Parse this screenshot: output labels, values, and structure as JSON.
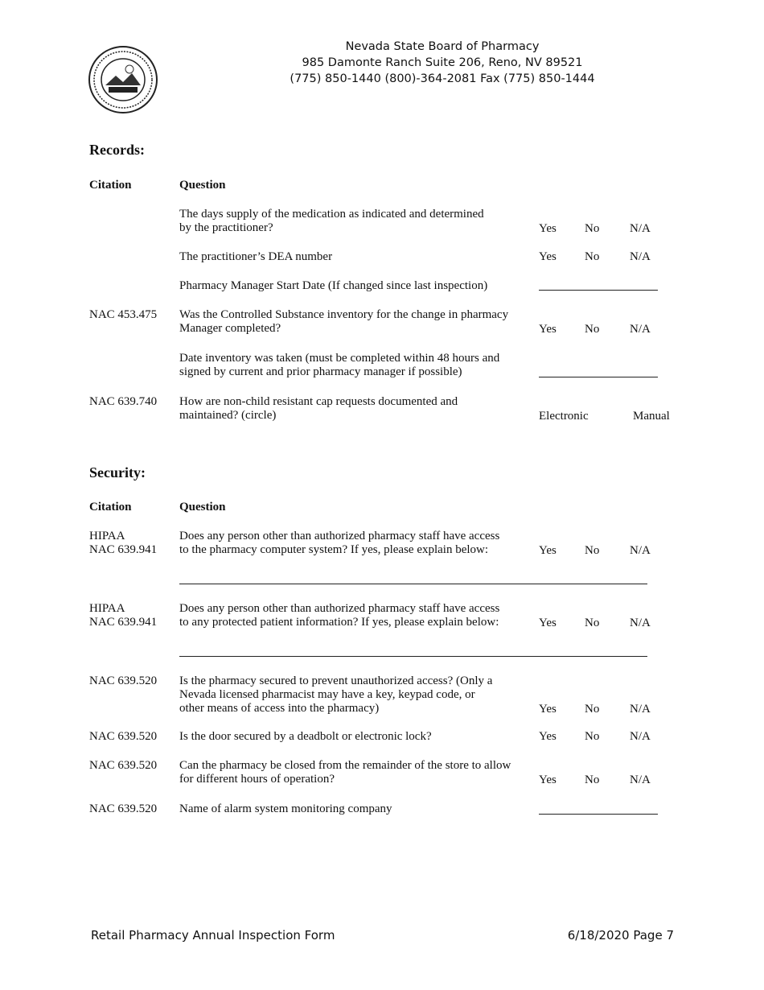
{
  "header": {
    "org": "Nevada State Board of Pharmacy",
    "address": "985 Damonte Ranch Suite 206, Reno, NV 89521",
    "phones": "(775) 850-1440 (800)-364-2081 Fax (775) 850-1444",
    "seal_text": "The Great Seal of the State of Nevada"
  },
  "columns": {
    "citation": "Citation",
    "question": "Question"
  },
  "answers": {
    "yes": "Yes",
    "no": "No",
    "na": "N/A",
    "electronic": "Electronic",
    "manual": "Manual"
  },
  "records": {
    "title": "Records:",
    "rows": [
      {
        "citation": "",
        "q": [
          "The days supply of the medication as indicated and determined",
          "by the practitioner?"
        ]
      },
      {
        "citation": "",
        "q": [
          "The practitioner’s DEA number"
        ]
      },
      {
        "citation": "",
        "q": [
          "Pharmacy Manager Start Date (If changed since last inspection)"
        ]
      },
      {
        "citation": "NAC 453.475",
        "q": [
          "Was the Controlled Substance inventory for the change in pharmacy",
          "Manager completed?"
        ]
      },
      {
        "citation": "",
        "q": [
          "Date inventory was taken (must be completed within 48 hours and",
          "signed by current and prior pharmacy manager if possible)"
        ]
      },
      {
        "citation": "NAC 639.740",
        "q": [
          "How are non-child resistant cap requests documented and",
          "maintained? (circle)"
        ]
      }
    ]
  },
  "security": {
    "title": "Security:",
    "rows": [
      {
        "citation": [
          "HIPAA",
          "NAC 639.941"
        ],
        "q": [
          "Does any person other than authorized pharmacy staff have access",
          "to the pharmacy computer system? If yes, please explain below:"
        ]
      },
      {
        "citation": [
          "HIPAA",
          "NAC 639.941"
        ],
        "q": [
          "Does any person other than authorized pharmacy staff have access",
          "to any protected patient information? If yes, please explain below:"
        ]
      },
      {
        "citation": [
          "NAC 639.520"
        ],
        "q": [
          "Is the pharmacy secured to prevent unauthorized access? (Only a",
          "Nevada licensed pharmacist may have a key, keypad code, or",
          "other means of access into the pharmacy)"
        ]
      },
      {
        "citation": [
          "NAC 639.520"
        ],
        "q": [
          "Is the door secured by a deadbolt or electronic lock?"
        ]
      },
      {
        "citation": [
          "NAC 639.520"
        ],
        "q": [
          "Can the pharmacy be closed from the remainder of the store to allow",
          "for different hours of operation?"
        ]
      },
      {
        "citation": [
          "NAC 639.520"
        ],
        "q": [
          "Name of alarm system monitoring company"
        ]
      }
    ]
  },
  "footer": {
    "left": "Retail Pharmacy Annual Inspection Form",
    "right": "6/18/2020 Page 7"
  }
}
